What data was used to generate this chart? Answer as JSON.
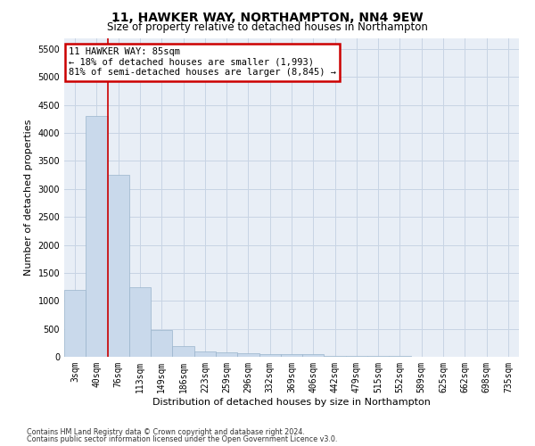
{
  "title": "11, HAWKER WAY, NORTHAMPTON, NN4 9EW",
  "subtitle": "Size of property relative to detached houses in Northampton",
  "xlabel": "Distribution of detached houses by size in Northampton",
  "ylabel": "Number of detached properties",
  "footer_line1": "Contains HM Land Registry data © Crown copyright and database right 2024.",
  "footer_line2": "Contains public sector information licensed under the Open Government Licence v3.0.",
  "bar_labels": [
    "3sqm",
    "40sqm",
    "76sqm",
    "113sqm",
    "149sqm",
    "186sqm",
    "223sqm",
    "259sqm",
    "296sqm",
    "332sqm",
    "369sqm",
    "406sqm",
    "442sqm",
    "479sqm",
    "515sqm",
    "552sqm",
    "589sqm",
    "625sqm",
    "662sqm",
    "698sqm",
    "735sqm"
  ],
  "bar_values": [
    1200,
    4300,
    3250,
    1250,
    480,
    195,
    100,
    80,
    60,
    55,
    50,
    50,
    20,
    15,
    10,
    8,
    5,
    3,
    2,
    1,
    1
  ],
  "bar_color": "#c9d9eb",
  "bar_edgecolor": "#9ab4cc",
  "red_line_x": 1.5,
  "annotation_text": "11 HAWKER WAY: 85sqm\n← 18% of detached houses are smaller (1,993)\n81% of semi-detached houses are larger (8,845) →",
  "annotation_box_color": "#ffffff",
  "annotation_box_edgecolor": "#cc0000",
  "ylim": [
    0,
    5700
  ],
  "yticks": [
    0,
    500,
    1000,
    1500,
    2000,
    2500,
    3000,
    3500,
    4000,
    4500,
    5000,
    5500
  ],
  "grid_color": "#c8d4e4",
  "bg_color": "#e8eef6",
  "title_fontsize": 10,
  "subtitle_fontsize": 8.5,
  "axis_label_fontsize": 8,
  "tick_fontsize": 7,
  "annotation_fontsize": 7.5
}
